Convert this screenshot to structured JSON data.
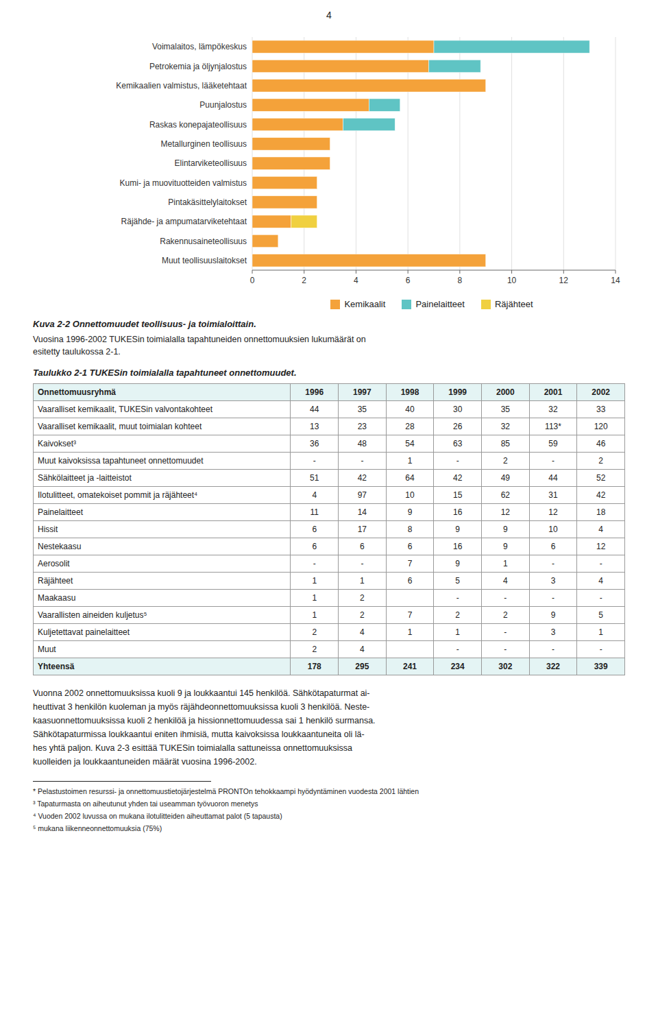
{
  "page_number": "4",
  "chart_data": {
    "type": "bar",
    "orientation": "horizontal",
    "stacked": true,
    "grid": true,
    "legend": "bottom",
    "categories": [
      "Voimalaitos, lämpökeskus",
      "Petrokemia ja öljynjalostus",
      "Kemikaalien valmistus, lääketehtaat",
      "Puunjalostus",
      "Raskas konepajateollisuus",
      "Metallurginen teollisuus",
      "Elintarviketeollisuus",
      "Kumi- ja muovituotteiden valmistus",
      "Pintakäsittelylaitokset",
      "Räjähde- ja ampumatarviketehtaat",
      "Rakennusaineteollisuus",
      "Muut teollisuuslaitokset"
    ],
    "series": [
      {
        "name": "Kemikaalit",
        "color": "#F4A23A",
        "values": [
          7.0,
          6.8,
          9.0,
          4.5,
          3.5,
          3.0,
          3.0,
          2.5,
          2.5,
          1.5,
          1.0,
          9.0
        ]
      },
      {
        "name": "Painelaitteet",
        "color": "#5FC4C4",
        "values": [
          6.0,
          2.0,
          0.0,
          1.2,
          2.0,
          0.0,
          0.0,
          0.0,
          0.0,
          0.0,
          0.0,
          0.0
        ]
      },
      {
        "name": "Räjähteet",
        "color": "#F0D040",
        "values": [
          0.0,
          0.0,
          0.0,
          0.0,
          0.0,
          0.0,
          0.0,
          0.0,
          0.0,
          1.0,
          0.0,
          0.0
        ]
      }
    ],
    "xlim": [
      0,
      14
    ],
    "xticks": [
      0,
      2,
      4,
      6,
      8,
      10,
      12,
      14
    ]
  },
  "caption_title": "Kuva 2-2  Onnettomuudet teollisuus- ja toimialoittain.",
  "caption_text": "Vuosina 1996-2002 TUKESin toimialalla tapahtuneiden onnettomuuksien lukumäärät on\nesitetty taulukossa 2-1.",
  "table_title": "Taulukko 2-1   TUKESin toimialalla tapahtuneet onnettomuudet.",
  "table": {
    "header": [
      "Onnettomuusryhmä",
      "1996",
      "1997",
      "1998",
      "1999",
      "2000",
      "2001",
      "2002"
    ],
    "rows": [
      [
        "Vaaralliset kemikaalit, TUKESin valvontakohteet",
        "44",
        "35",
        "40",
        "30",
        "35",
        "32",
        "33"
      ],
      [
        "Vaaralliset kemikaalit, muut toimialan kohteet",
        "13",
        "23",
        "28",
        "26",
        "32",
        "113*",
        "120"
      ],
      [
        "Kaivokset³",
        "36",
        "48",
        "54",
        "63",
        "85",
        "59",
        "46"
      ],
      [
        "Muut kaivoksissa tapahtuneet onnettomuudet",
        "-",
        "-",
        "1",
        "-",
        "2",
        "-",
        "2"
      ],
      [
        "Sähkölaitteet ja -laitteistot",
        "51",
        "42",
        "64",
        "42",
        "49",
        "44",
        "52"
      ],
      [
        "Ilotulitteet, omatekoiset pommit ja räjähteet⁴",
        "4",
        "97",
        "10",
        "15",
        "62",
        "31",
        "42"
      ],
      [
        "Painelaitteet",
        "11",
        "14",
        "9",
        "16",
        "12",
        "12",
        "18"
      ],
      [
        "Hissit",
        "6",
        "17",
        "8",
        "9",
        "9",
        "10",
        "4"
      ],
      [
        "Nestekaasu",
        "6",
        "6",
        "6",
        "16",
        "9",
        "6",
        "12"
      ],
      [
        "Aerosolit",
        "-",
        "-",
        "7",
        "9",
        "1",
        "-",
        "-"
      ],
      [
        "Räjähteet",
        "1",
        "1",
        "6",
        "5",
        "4",
        "3",
        "4"
      ],
      [
        "Maakaasu",
        "1",
        "2",
        "",
        "-",
        "-",
        "-",
        "-"
      ],
      [
        "Vaarallisten aineiden kuljetus⁵",
        "1",
        "2",
        "7",
        "2",
        "2",
        "9",
        "5"
      ],
      [
        "Kuljetettavat painelaitteet",
        "2",
        "4",
        "1",
        "1",
        "-",
        "3",
        "1"
      ],
      [
        "Muut",
        "2",
        "4",
        "",
        "-",
        "-",
        "-",
        "-"
      ],
      [
        "Yhteensä",
        "178",
        "295",
        "241",
        "234",
        "302",
        "322",
        "339"
      ]
    ]
  },
  "body_text": "Vuonna 2002 onnettomuuksissa kuoli 9 ja loukkaantui 145 henkilöä. Sähkötapaturmat ai-\nheuttivat 3 henkilön kuoleman ja myös räjähdeonnettomuuksissa kuoli 3 henkilöä. Neste-\nkaasuonnettomuuksissa kuoli 2 henkilöä ja hissionnettomuudessa sai 1 henkilö surmansa.\nSähkötapaturmissa loukkaantui eniten ihmisiä, mutta kaivoksissa loukkaantuneita oli lä-\nhes yhtä paljon. Kuva 2-3 esittää TUKESin toimialalla sattuneissa onnettomuuksissa\nkuolleiden ja loukkaantuneiden määrät vuosina 1996-2002.",
  "footnotes": [
    "* Pelastustoimen resurssi- ja onnettomuustietojärjestelmä PRONTOn tehokkaampi hyödyntäminen vuodesta 2001 lähtien",
    "³ Tapaturmasta on aiheutunut yhden tai useamman työvuoron menetys",
    "⁴ Vuoden 2002 luvussa on mukana ilotulitteiden aiheuttamat palot (5 tapausta)",
    "⁵ mukana liikenneonnettomuuksia (75%)"
  ]
}
